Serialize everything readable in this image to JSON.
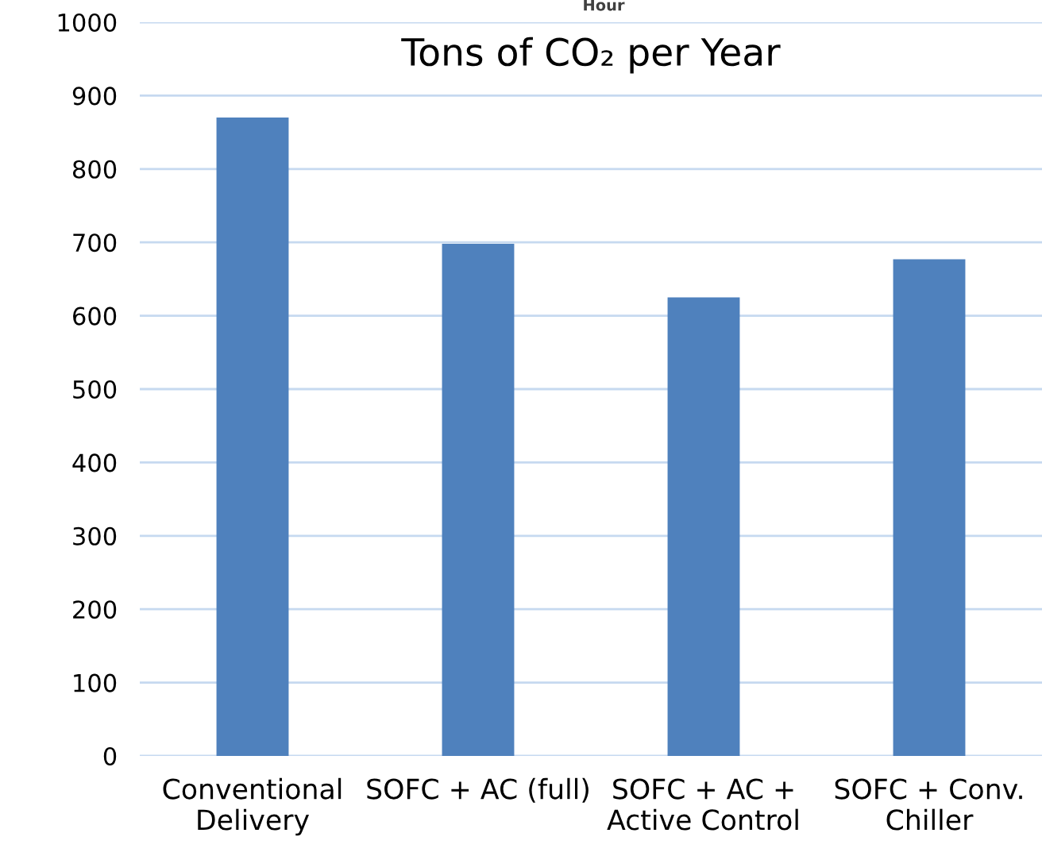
{
  "chart_data": {
    "type": "bar",
    "title": "Tons of CO₂ per Year",
    "categories": [
      "Conventional\nDelivery",
      "SOFC + AC (full)",
      "SOFC + AC +\nActive Control",
      "SOFC + Conv.\nChiller"
    ],
    "values": [
      870,
      698,
      625,
      677
    ],
    "color": "#4f81bd",
    "ylim": [
      0,
      1000
    ],
    "yticks": [
      0,
      100,
      200,
      300,
      400,
      500,
      600,
      700,
      800,
      900,
      1000
    ],
    "grid": "y",
    "annotations": [
      "Hour"
    ]
  }
}
